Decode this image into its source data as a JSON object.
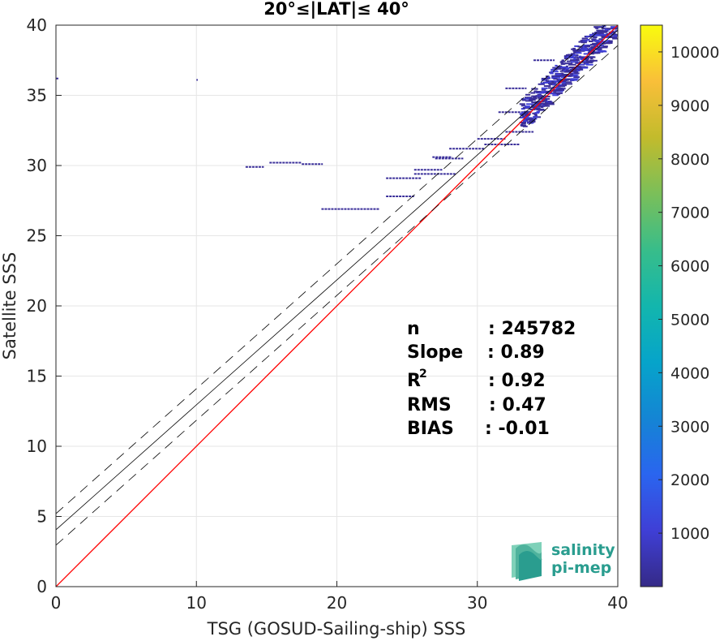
{
  "chart_data": {
    "type": "heatmap",
    "title": "20°≤|LAT|≤ 40°",
    "xlabel": "TSG (GOSUD-Sailing-ship) SSS",
    "ylabel": "Satellite SSS",
    "xlim": [
      0,
      40
    ],
    "ylim": [
      0,
      40
    ],
    "x_ticks": [
      "0",
      "10",
      "20",
      "30",
      "40"
    ],
    "y_ticks": [
      "0",
      "5",
      "10",
      "15",
      "20",
      "25",
      "30",
      "35",
      "40"
    ],
    "grid": true,
    "colorbar": {
      "range": [
        0,
        10500
      ],
      "ticks": [
        "1000",
        "2000",
        "3000",
        "4000",
        "5000",
        "6000",
        "7000",
        "8000",
        "9000",
        "10000"
      ],
      "colormap": "parula"
    },
    "reference_lines": {
      "one_to_one": {
        "slope": 1,
        "intercept": 0,
        "color": "#ff0000"
      },
      "fit": {
        "slope": 0.89,
        "intercept": 4.05,
        "color": "#000000"
      },
      "fit_upper": {
        "slope": 0.89,
        "intercept": 5.2,
        "color": "#000000",
        "dashed": true
      },
      "fit_lower": {
        "slope": 0.89,
        "intercept": 2.95,
        "color": "#000000",
        "dashed": true
      }
    },
    "point_segments": [
      {
        "x1": 0.0,
        "x2": 0.2,
        "y": 36.2
      },
      {
        "x1": 10.0,
        "x2": 10.1,
        "y": 36.1
      },
      {
        "x1": 13.5,
        "x2": 14.8,
        "y": 29.9
      },
      {
        "x1": 15.2,
        "x2": 17.5,
        "y": 30.2
      },
      {
        "x1": 17.5,
        "x2": 19.0,
        "y": 30.1
      },
      {
        "x1": 18.9,
        "x2": 23.0,
        "y": 26.9
      },
      {
        "x1": 23.5,
        "x2": 25.5,
        "y": 27.8
      },
      {
        "x1": 23.5,
        "x2": 26.0,
        "y": 29.1
      },
      {
        "x1": 25.5,
        "x2": 28.5,
        "y": 29.4
      },
      {
        "x1": 25.5,
        "x2": 27.5,
        "y": 29.7
      },
      {
        "x1": 26.8,
        "x2": 28.2,
        "y": 30.6
      },
      {
        "x1": 27.0,
        "x2": 29.0,
        "y": 30.5
      },
      {
        "x1": 28.0,
        "x2": 30.5,
        "y": 31.2
      },
      {
        "x1": 30.5,
        "x2": 33.0,
        "y": 31.5
      },
      {
        "x1": 30.0,
        "x2": 32.0,
        "y": 31.9
      },
      {
        "x1": 32.0,
        "x2": 34.0,
        "y": 32.4
      },
      {
        "x1": 31.5,
        "x2": 33.5,
        "y": 33.8
      },
      {
        "x1": 32.0,
        "x2": 33.5,
        "y": 35.5
      },
      {
        "x1": 34.0,
        "x2": 35.5,
        "y": 37.5
      }
    ],
    "density_band": {
      "x_start": 33.0,
      "x_end": 39.8,
      "y_center_offset": 0.6,
      "spread": 1.1,
      "count_level": 1000
    },
    "annotation": {
      "n_label": "n",
      "n_value": ": 245782",
      "slope_label": "Slope",
      "slope_value": ": 0.89",
      "r2_label": "R",
      "r2_sup": "2",
      "r2_value": ": 0.92",
      "rms_label": "RMS",
      "rms_value": ": 0.47",
      "bias_label": "BIAS",
      "bias_value": ": -0.01"
    }
  },
  "logo": {
    "line1": "salinity",
    "line2": "pi-mep"
  }
}
